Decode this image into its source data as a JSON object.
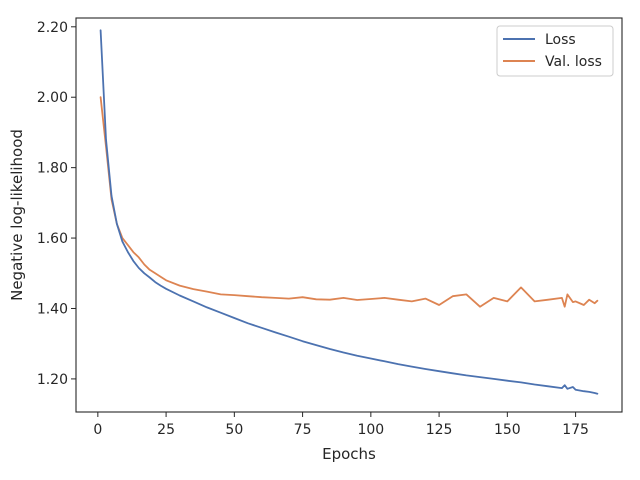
{
  "chart_data": {
    "type": "line",
    "xlabel": "Epochs",
    "ylabel": "Negative log-likelihood",
    "xlim": [
      -8,
      192
    ],
    "ylim": [
      1.106,
      2.225
    ],
    "xticks": [
      0,
      25,
      50,
      75,
      100,
      125,
      150,
      175
    ],
    "xtick_labels": [
      "0",
      "25",
      "50",
      "75",
      "100",
      "125",
      "150",
      "175"
    ],
    "yticks": [
      1.2,
      1.4,
      1.6,
      1.8,
      2.0,
      2.2
    ],
    "ytick_labels": [
      "1.20",
      "1.40",
      "1.60",
      "1.80",
      "2.00",
      "2.20"
    ],
    "legend_position": "top-right",
    "x": [
      1,
      3,
      5,
      7,
      9,
      11,
      13,
      15,
      17,
      19,
      21,
      23,
      25,
      30,
      35,
      40,
      45,
      50,
      55,
      60,
      65,
      70,
      75,
      80,
      85,
      90,
      95,
      100,
      105,
      110,
      115,
      120,
      125,
      130,
      135,
      140,
      145,
      150,
      155,
      160,
      165,
      170,
      171,
      172,
      174,
      175,
      178,
      180,
      182,
      183
    ],
    "series": [
      {
        "name": "Loss",
        "color": "#4c72b0",
        "values": [
          2.19,
          1.88,
          1.72,
          1.64,
          1.59,
          1.56,
          1.535,
          1.515,
          1.5,
          1.488,
          1.475,
          1.465,
          1.456,
          1.437,
          1.42,
          1.403,
          1.388,
          1.373,
          1.358,
          1.345,
          1.332,
          1.32,
          1.307,
          1.296,
          1.285,
          1.275,
          1.266,
          1.258,
          1.25,
          1.242,
          1.235,
          1.228,
          1.222,
          1.216,
          1.21,
          1.205,
          1.2,
          1.195,
          1.19,
          1.184,
          1.179,
          1.174,
          1.182,
          1.172,
          1.177,
          1.169,
          1.165,
          1.163,
          1.16,
          1.158
        ]
      },
      {
        "name": "Val. loss",
        "color": "#dd8452",
        "values": [
          2.0,
          1.86,
          1.71,
          1.64,
          1.6,
          1.58,
          1.56,
          1.545,
          1.525,
          1.51,
          1.5,
          1.49,
          1.48,
          1.465,
          1.455,
          1.448,
          1.44,
          1.438,
          1.435,
          1.432,
          1.43,
          1.428,
          1.432,
          1.426,
          1.425,
          1.43,
          1.424,
          1.427,
          1.43,
          1.425,
          1.42,
          1.428,
          1.41,
          1.435,
          1.44,
          1.405,
          1.43,
          1.42,
          1.46,
          1.42,
          1.425,
          1.43,
          1.405,
          1.44,
          1.418,
          1.42,
          1.41,
          1.425,
          1.415,
          1.422
        ]
      }
    ]
  }
}
